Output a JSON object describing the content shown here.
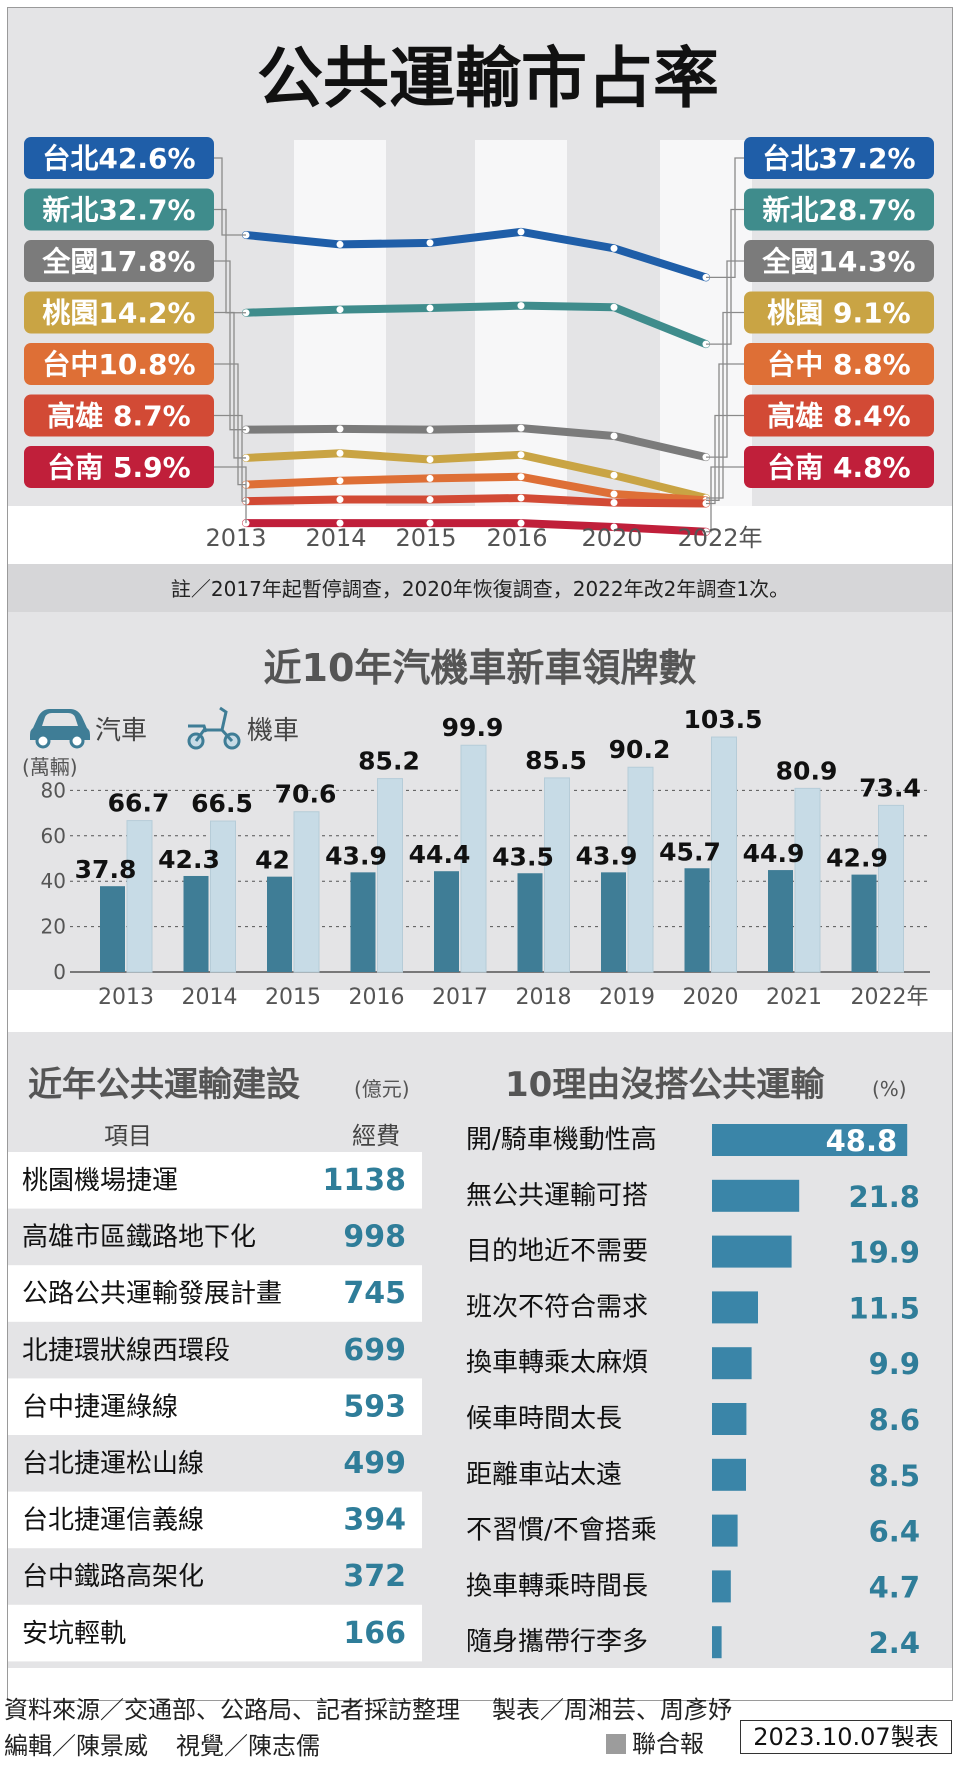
{
  "line_chart": {
    "title": "公共運輸市占率",
    "years": [
      "2013",
      "2014",
      "2015",
      "2016",
      "2020",
      "2022年"
    ],
    "note": "註／2017年起暫停調查，2020年恢復調查，2022年改2年調查1次。",
    "start_labels": [
      "台北42.6%",
      "新北32.7%",
      "全國17.8%",
      "桃園14.2%",
      "台中10.8%",
      "高雄  8.7%",
      "台南  5.9%"
    ],
    "end_labels": [
      "台北37.2%",
      "新北28.7%",
      "全國14.3%",
      "桃園  9.1%",
      "台中  8.8%",
      "高雄  8.4%",
      "台南  4.8%"
    ]
  },
  "bar_chart": {
    "title": "近10年汽機車新車領牌數",
    "unit": "(萬輛)",
    "legend_car": "汽車",
    "legend_moto": "機車"
  },
  "construction": {
    "title": "近年公共運輸建設",
    "unit": "(億元)",
    "col_item": "項目",
    "col_cost": "經費",
    "rows": [
      {
        "name": "桃園機場捷運",
        "value": "1138"
      },
      {
        "name": "高雄市區鐵路地下化",
        "value": "998"
      },
      {
        "name": "公路公共運輸發展計畫",
        "value": "745"
      },
      {
        "name": "北捷環狀線西環段",
        "value": "699"
      },
      {
        "name": "台中捷運綠線",
        "value": "593"
      },
      {
        "name": "台北捷運松山線",
        "value": "499"
      },
      {
        "name": "台北捷運信義線",
        "value": "394"
      },
      {
        "name": "台中鐵路高架化",
        "value": "372"
      },
      {
        "name": "安坑輕軌",
        "value": "166"
      }
    ]
  },
  "reasons": {
    "title": "10理由沒搭公共運輸",
    "unit": "(%)"
  },
  "footer": {
    "source": "資料來源／交通部、公路局、記者採訪整理",
    "producer": "製表／周湘芸、周彥妤",
    "editor": "編輯／陳景威",
    "visual": "視覺／陳志儒",
    "brand": "聯合報",
    "date": "2023.10.07製表"
  },
  "colors": {
    "taipei": "#1f5ea8",
    "newtaipei": "#3f8c8c",
    "national": "#7b7b7b",
    "taoyuan": "#c9a444",
    "taichung": "#de6f36",
    "kaohsiung": "#d24a35",
    "tainan": "#c01f3a",
    "car": "#3f7d96",
    "moto": "#c7dbe6",
    "bar_accent": "#3a85a8"
  },
  "chart_data": [
    {
      "type": "line",
      "title": "公共運輸市占率",
      "x": [
        "2013",
        "2014",
        "2015",
        "2016",
        "2020",
        "2022"
      ],
      "ylabel": "",
      "series": [
        {
          "name": "台北",
          "values": [
            42.6,
            41.4,
            41.6,
            43.0,
            40.9,
            37.2
          ]
        },
        {
          "name": "新北",
          "values": [
            32.7,
            33.1,
            33.3,
            33.6,
            33.4,
            28.7
          ]
        },
        {
          "name": "全國",
          "values": [
            17.8,
            17.9,
            17.8,
            18.0,
            17.0,
            14.3
          ]
        },
        {
          "name": "桃園",
          "values": [
            14.2,
            14.8,
            14.0,
            14.6,
            12.0,
            9.1
          ]
        },
        {
          "name": "台中",
          "values": [
            10.8,
            11.3,
            11.6,
            11.8,
            9.6,
            8.8
          ]
        },
        {
          "name": "高雄",
          "values": [
            8.7,
            8.9,
            8.9,
            9.1,
            8.5,
            8.4
          ]
        },
        {
          "name": "台南",
          "values": [
            5.9,
            5.9,
            5.9,
            5.9,
            5.4,
            4.8
          ]
        }
      ]
    },
    {
      "type": "bar",
      "title": "近10年汽機車新車領牌數",
      "ylabel": "(萬輛)",
      "categories": [
        "2013",
        "2014",
        "2015",
        "2016",
        "2017",
        "2018",
        "2019",
        "2020",
        "2021",
        "2022年"
      ],
      "series": [
        {
          "name": "汽車",
          "values": [
            37.8,
            42.3,
            42,
            43.9,
            44.4,
            43.5,
            43.9,
            45.7,
            44.9,
            42.9
          ]
        },
        {
          "name": "機車",
          "values": [
            66.7,
            66.5,
            70.6,
            85.2,
            99.9,
            85.5,
            90.2,
            103.5,
            80.9,
            73.4
          ]
        }
      ],
      "ylim": [
        0,
        100
      ],
      "yticks": [
        0,
        20,
        40,
        60,
        80
      ],
      "grid": true
    },
    {
      "type": "bar",
      "title": "10理由沒搭公共運輸",
      "ylabel": "(%)",
      "categories": [
        "開/騎車機動性高",
        "無公共運輸可搭",
        "目的地近不需要",
        "班次不符合需求",
        "換車轉乘太麻煩",
        "候車時間太長",
        "距離車站太遠",
        "不習慣/不會搭乘",
        "換車轉乘時間長",
        "隨身攜帶行李多"
      ],
      "values": [
        48.8,
        21.8,
        19.9,
        11.5,
        9.9,
        8.6,
        8.5,
        6.4,
        4.7,
        2.4
      ]
    }
  ]
}
